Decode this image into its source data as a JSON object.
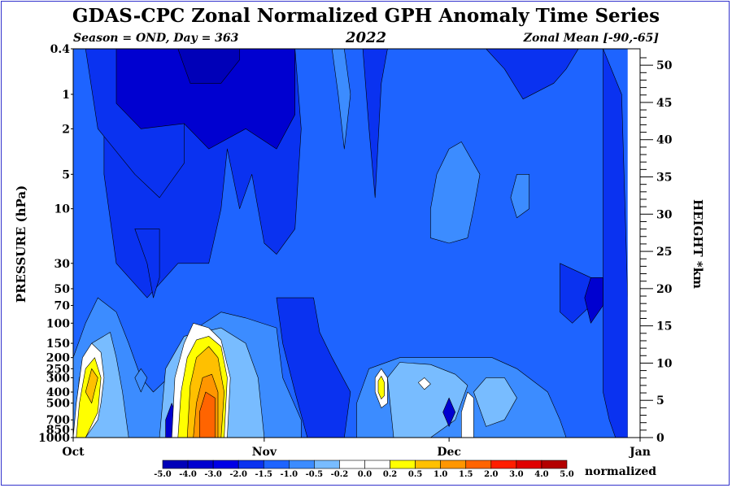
{
  "chart_data": {
    "type": "heatmap",
    "title": "GDAS-CPC Zonal Normalized GPH Anomaly Time Series",
    "subtitle_left": "Season = OND, Day = 363",
    "subtitle_center": "2022",
    "subtitle_right": "Zonal Mean [-90,-65]",
    "ylabel_left": "PRESSURE (hPa)",
    "ylabel_right": "HEIGHT *km",
    "colorbar_units": "normalized",
    "x_ticks": [
      {
        "label": "Oct",
        "day": 0
      },
      {
        "label": "Nov",
        "day": 31
      },
      {
        "label": "Dec",
        "day": 61
      },
      {
        "label": "Jan",
        "day": 92
      }
    ],
    "pressure_ticks": [
      0.4,
      1,
      2,
      5,
      10,
      30,
      50,
      70,
      100,
      150,
      200,
      250,
      300,
      400,
      500,
      700,
      850,
      1000
    ],
    "pressure_tick_labels": [
      "0.4",
      "1",
      "2",
      "5",
      "10",
      "30",
      "50",
      "70",
      "100",
      "150",
      "200",
      "250",
      "300",
      "400",
      "500",
      "700",
      "850",
      "1000"
    ],
    "pressure_range": [
      1000,
      0.4
    ],
    "height_ticks": [
      0,
      5,
      10,
      15,
      20,
      25,
      30,
      35,
      40,
      45,
      50
    ],
    "height_range": [
      0,
      51
    ],
    "day_range": [
      0,
      92
    ],
    "data_end_day": 90,
    "levels": [
      "-5.0",
      "-4.0",
      "-3.0",
      "-2.0",
      "-1.5",
      "-1.0",
      "-0.5",
      "-0.2",
      "0.0",
      "0.2",
      "0.5",
      "1.0",
      "1.5",
      "2.0",
      "3.0",
      "4.0",
      "5.0"
    ],
    "colors": [
      "#0000b8",
      "#0000d0",
      "#0000e6",
      "#0a32f0",
      "#1e64ff",
      "#3c8cff",
      "#78bcff",
      "#ffffff",
      "#ffffff",
      "#ffff00",
      "#ffc000",
      "#ff9600",
      "#ff6400",
      "#ff1e00",
      "#e00000",
      "#b40000"
    ],
    "background_color": "#1e64ff",
    "anomaly_regions": [
      {
        "color": "#0a32f0",
        "points": [
          [
            0,
            0.4
          ],
          [
            5,
            0.4
          ],
          [
            5,
            5
          ],
          [
            7,
            30
          ],
          [
            12,
            60
          ],
          [
            17,
            30
          ],
          [
            22,
            30
          ],
          [
            24,
            10
          ],
          [
            25,
            3
          ],
          [
            27,
            10
          ],
          [
            29,
            5
          ],
          [
            31,
            20
          ],
          [
            33,
            25
          ],
          [
            36,
            15
          ],
          [
            37,
            2
          ],
          [
            36,
            0.4
          ]
        ]
      },
      {
        "color": "#0a32f0",
        "points": [
          [
            2,
            0.4
          ],
          [
            4,
            2
          ],
          [
            10,
            5
          ],
          [
            14,
            8
          ],
          [
            18,
            4
          ],
          [
            18,
            0.4
          ]
        ]
      },
      {
        "color": "#0000d0",
        "points": [
          [
            7,
            0.4
          ],
          [
            7,
            1.2
          ],
          [
            11,
            2
          ],
          [
            18,
            1.8
          ],
          [
            22,
            3
          ],
          [
            28,
            2
          ],
          [
            33,
            3
          ],
          [
            36,
            1.5
          ],
          [
            36,
            0.4
          ]
        ]
      },
      {
        "color": "#0000b8",
        "points": [
          [
            17,
            0.4
          ],
          [
            19,
            0.8
          ],
          [
            24,
            0.8
          ],
          [
            27,
            0.5
          ],
          [
            27,
            0.4
          ]
        ]
      },
      {
        "color": "#0a32f0",
        "points": [
          [
            10,
            15
          ],
          [
            12,
            30
          ],
          [
            13,
            60
          ],
          [
            14,
            40
          ],
          [
            14,
            15
          ]
        ]
      },
      {
        "color": "#0a32f0",
        "points": [
          [
            33,
            60
          ],
          [
            34,
            150
          ],
          [
            36,
            400
          ],
          [
            38,
            1000
          ],
          [
            44,
            1000
          ],
          [
            45,
            400
          ],
          [
            42,
            200
          ],
          [
            40,
            120
          ],
          [
            39,
            60
          ]
        ]
      },
      {
        "color": "#0a32f0",
        "points": [
          [
            47,
            0.4
          ],
          [
            48,
            2
          ],
          [
            49,
            8
          ],
          [
            50,
            0.8
          ],
          [
            51,
            0.4
          ]
        ]
      },
      {
        "color": "#0a32f0",
        "points": [
          [
            79,
            30
          ],
          [
            79,
            80
          ],
          [
            81,
            100
          ],
          [
            84,
            70
          ],
          [
            84,
            40
          ]
        ]
      },
      {
        "color": "#0000d0",
        "points": [
          [
            84,
            40
          ],
          [
            83,
            60
          ],
          [
            84,
            100
          ],
          [
            86,
            70
          ],
          [
            86,
            40
          ]
        ]
      },
      {
        "color": "#0a32f0",
        "points": [
          [
            86,
            0.4
          ],
          [
            89,
            1
          ],
          [
            90,
            60
          ],
          [
            90,
            300
          ],
          [
            90,
            1000
          ],
          [
            88,
            1000
          ],
          [
            87,
            700
          ],
          [
            86,
            400
          ]
        ]
      },
      {
        "color": "#0a32f0",
        "points": [
          [
            67,
            0.4
          ],
          [
            70,
            0.6
          ],
          [
            73,
            1.1
          ],
          [
            78,
            0.8
          ],
          [
            80,
            0.6
          ],
          [
            82,
            0.4
          ]
        ]
      },
      {
        "color": "#3c8cff",
        "points": [
          [
            61,
            3
          ],
          [
            59,
            5
          ],
          [
            58,
            10
          ],
          [
            58,
            18
          ],
          [
            61,
            20
          ],
          [
            64,
            18
          ],
          [
            65,
            10
          ],
          [
            66,
            5
          ],
          [
            63,
            2.6
          ]
        ]
      },
      {
        "color": "#3c8cff",
        "points": [
          [
            72,
            5
          ],
          [
            71,
            8
          ],
          [
            72,
            12
          ],
          [
            74,
            10
          ],
          [
            74,
            5
          ]
        ]
      },
      {
        "color": "#3c8cff",
        "points": [
          [
            0,
            1000
          ],
          [
            0,
            200
          ],
          [
            2,
            100
          ],
          [
            4,
            60
          ],
          [
            7,
            80
          ],
          [
            9,
            150
          ],
          [
            11,
            300
          ],
          [
            13,
            400
          ],
          [
            17,
            250
          ],
          [
            19,
            120
          ],
          [
            24,
            80
          ],
          [
            28,
            90
          ],
          [
            33,
            110
          ],
          [
            34,
            300
          ],
          [
            37,
            700
          ],
          [
            37,
            1000
          ]
        ]
      },
      {
        "color": "#3c8cff",
        "points": [
          [
            42,
            0.4
          ],
          [
            43,
            1
          ],
          [
            44,
            3
          ],
          [
            45,
            1
          ],
          [
            44,
            0.4
          ]
        ]
      },
      {
        "color": "#3c8cff",
        "points": [
          [
            48,
            250
          ],
          [
            53,
            200
          ],
          [
            60,
            200
          ],
          [
            68,
            200
          ],
          [
            72,
            250
          ],
          [
            77,
            400
          ],
          [
            79,
            700
          ],
          [
            80,
            1000
          ],
          [
            46,
            1000
          ],
          [
            46,
            500
          ]
        ]
      },
      {
        "color": "#78bcff",
        "points": [
          [
            0,
            1000
          ],
          [
            1,
            300
          ],
          [
            3,
            150
          ],
          [
            6,
            120
          ],
          [
            7,
            200
          ],
          [
            8,
            400
          ],
          [
            9,
            1000
          ]
        ]
      },
      {
        "color": "#78bcff",
        "points": [
          [
            14,
            1000
          ],
          [
            15,
            250
          ],
          [
            18,
            130
          ],
          [
            24,
            110
          ],
          [
            28,
            150
          ],
          [
            30,
            300
          ],
          [
            31,
            1000
          ]
        ]
      },
      {
        "color": "#78bcff",
        "points": [
          [
            51,
            300
          ],
          [
            53,
            220
          ],
          [
            58,
            230
          ],
          [
            62,
            280
          ],
          [
            64,
            350
          ],
          [
            62,
            700
          ],
          [
            58,
            1000
          ],
          [
            52,
            1000
          ]
        ]
      },
      {
        "color": "#78bcff",
        "points": [
          [
            65,
            400
          ],
          [
            67,
            300
          ],
          [
            70,
            300
          ],
          [
            72,
            450
          ],
          [
            70,
            700
          ],
          [
            67,
            800
          ]
        ]
      },
      {
        "color": "#3c8cff",
        "points": [
          [
            10,
            300
          ],
          [
            11,
            250
          ],
          [
            12,
            300
          ],
          [
            11,
            400
          ]
        ]
      },
      {
        "color": "#0000d0",
        "points": [
          [
            15,
            700
          ],
          [
            16,
            500
          ],
          [
            17,
            700
          ],
          [
            17,
            1000
          ],
          [
            15,
            1000
          ]
        ]
      },
      {
        "color": "#0000d0",
        "points": [
          [
            60,
            600
          ],
          [
            61,
            450
          ],
          [
            62,
            600
          ],
          [
            61,
            800
          ]
        ]
      },
      {
        "color": "#ffffff",
        "points": [
          [
            0,
            1000
          ],
          [
            0.5,
            500
          ],
          [
            1.5,
            200
          ],
          [
            3,
            150
          ],
          [
            4.5,
            180
          ],
          [
            5,
            300
          ],
          [
            4.5,
            500
          ],
          [
            4,
            700
          ],
          [
            2,
            1000
          ]
        ]
      },
      {
        "color": "#ffff00",
        "points": [
          [
            0.5,
            1000
          ],
          [
            1,
            500
          ],
          [
            2,
            250
          ],
          [
            3.5,
            200
          ],
          [
            4.5,
            300
          ],
          [
            4,
            600
          ],
          [
            2,
            1000
          ]
        ]
      },
      {
        "color": "#ffc000",
        "points": [
          [
            2,
            400
          ],
          [
            3,
            250
          ],
          [
            4,
            300
          ],
          [
            3,
            500
          ]
        ]
      },
      {
        "color": "#ffffff",
        "points": [
          [
            16,
            1000
          ],
          [
            16.5,
            300
          ],
          [
            18,
            150
          ],
          [
            19.5,
            100
          ],
          [
            22,
            110
          ],
          [
            24,
            140
          ],
          [
            25.5,
            300
          ],
          [
            25,
            1000
          ]
        ]
      },
      {
        "color": "#ffff00",
        "points": [
          [
            17,
            1000
          ],
          [
            17.5,
            400
          ],
          [
            18.5,
            200
          ],
          [
            20,
            140
          ],
          [
            22,
            130
          ],
          [
            24,
            160
          ],
          [
            25,
            300
          ],
          [
            24.5,
            1000
          ]
        ]
      },
      {
        "color": "#ffc000",
        "points": [
          [
            18.5,
            1000
          ],
          [
            19,
            350
          ],
          [
            20,
            200
          ],
          [
            22,
            160
          ],
          [
            23.5,
            200
          ],
          [
            24.5,
            400
          ],
          [
            24,
            1000
          ]
        ]
      },
      {
        "color": "#ff9600",
        "points": [
          [
            19.5,
            1000
          ],
          [
            20,
            500
          ],
          [
            21,
            300
          ],
          [
            22.5,
            280
          ],
          [
            23.5,
            400
          ],
          [
            23.5,
            1000
          ]
        ]
      },
      {
        "color": "#ff6400",
        "points": [
          [
            20.5,
            1000
          ],
          [
            20.5,
            600
          ],
          [
            21.5,
            400
          ],
          [
            23,
            450
          ],
          [
            23,
            1000
          ]
        ]
      },
      {
        "color": "#ffffff",
        "points": [
          [
            49,
            400
          ],
          [
            49,
            300
          ],
          [
            50,
            250
          ],
          [
            51,
            300
          ],
          [
            51,
            500
          ],
          [
            50,
            550
          ]
        ]
      },
      {
        "color": "#ffff00",
        "points": [
          [
            49.5,
            400
          ],
          [
            49.5,
            320
          ],
          [
            50,
            290
          ],
          [
            50.5,
            330
          ],
          [
            50.5,
            430
          ],
          [
            50,
            460
          ]
        ]
      },
      {
        "color": "#ffffff",
        "points": [
          [
            63,
            600
          ],
          [
            64,
            400
          ],
          [
            65,
            450
          ],
          [
            65,
            1000
          ],
          [
            63,
            1000
          ]
        ]
      },
      {
        "color": "#ffffff",
        "points": [
          [
            56,
            330
          ],
          [
            57,
            300
          ],
          [
            58,
            340
          ],
          [
            57,
            380
          ]
        ]
      }
    ]
  }
}
